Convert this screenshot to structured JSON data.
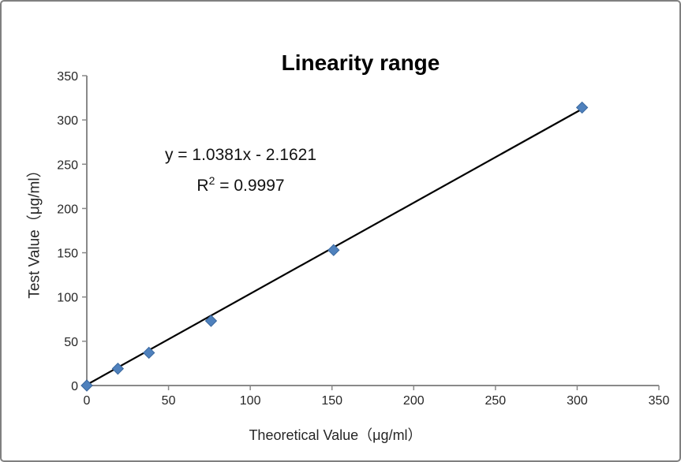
{
  "chart": {
    "title": "Linearity range",
    "equation_line1": "y = 1.0381x - 2.1621",
    "equation_r": "R",
    "equation_sup": "2",
    "equation_rest": " = 0.9997",
    "xlabel": "Theoretical Value（μg/ml）",
    "ylabel": "Test Value（μg/ml）"
  },
  "chart_data": {
    "type": "scatter",
    "title": "Linearity range",
    "xlabel": "Theoretical Value（μg/ml）",
    "ylabel": "Test Value（μg/ml）",
    "xlim": [
      0,
      350
    ],
    "ylim": [
      0,
      350
    ],
    "xtick_step": 50,
    "ytick_step": 50,
    "xticks": [
      0,
      50,
      100,
      150,
      200,
      250,
      300,
      350
    ],
    "yticks": [
      0,
      50,
      100,
      150,
      200,
      250,
      300,
      350
    ],
    "grid": false,
    "legend": "none",
    "points": [
      {
        "x": 0,
        "y": 0
      },
      {
        "x": 19,
        "y": 19
      },
      {
        "x": 38,
        "y": 37
      },
      {
        "x": 76,
        "y": 73
      },
      {
        "x": 151,
        "y": 153
      },
      {
        "x": 303,
        "y": 314
      }
    ],
    "trendline": {
      "type": "linear",
      "slope": 1.0381,
      "intercept": -2.1621,
      "equation": "y = 1.0381x - 2.1621",
      "r_squared": 0.9997
    },
    "colors": {
      "marker": "#4F81BD",
      "marker_edge": "#39679E",
      "trendline": "#000000",
      "axis": "#898989",
      "tick_text": "#262626"
    }
  }
}
